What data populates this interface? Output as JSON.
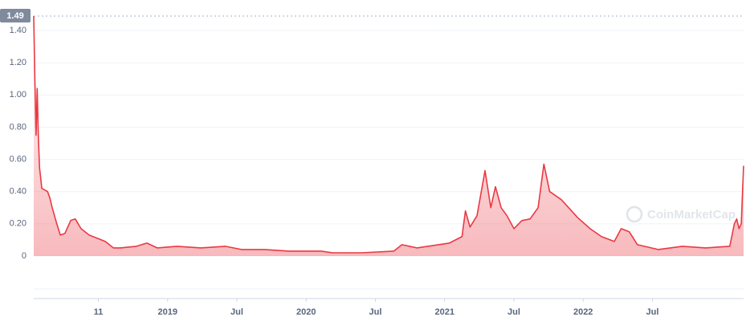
{
  "chart_data": {
    "type": "area",
    "high_label": "1.49",
    "watermark": "CoinMarketCap",
    "color": "#ea3943",
    "x": [
      0.4,
      0.5,
      0.6,
      0.7,
      0.8,
      0.9,
      1.1,
      1.6,
      1.8,
      2.0,
      2.4,
      2.7,
      3.1,
      3.6,
      4.0,
      4.5,
      5.2,
      5.9,
      6.6,
      7.3,
      7.9,
      9.3,
      10.2,
      11.1,
      12.8,
      14.9,
      17.0,
      18.4,
      20.4,
      22.5,
      25.3,
      26.3,
      28.8,
      31.6,
      32.3,
      33.6,
      36.4,
      37.5,
      37.8,
      38.2,
      38.8,
      39.5,
      40.0,
      40.4,
      40.9,
      41.4,
      42.0,
      42.7,
      43.4,
      44.1,
      44.6,
      45.1,
      46.1,
      47.0,
      47.5,
      48.6,
      49.6,
      50.7,
      51.3,
      52.0,
      52.7,
      54.5,
      56.6,
      58.6,
      60.7,
      61.1,
      61.3,
      61.5,
      61.7,
      61.9
    ],
    "values": [
      1.49,
      1.1,
      0.75,
      1.04,
      0.75,
      0.55,
      0.42,
      0.4,
      0.36,
      0.3,
      0.2,
      0.13,
      0.14,
      0.22,
      0.23,
      0.17,
      0.13,
      0.11,
      0.09,
      0.05,
      0.05,
      0.06,
      0.08,
      0.05,
      0.06,
      0.05,
      0.06,
      0.04,
      0.04,
      0.03,
      0.03,
      0.02,
      0.02,
      0.03,
      0.07,
      0.05,
      0.08,
      0.12,
      0.28,
      0.18,
      0.25,
      0.53,
      0.3,
      0.43,
      0.3,
      0.25,
      0.17,
      0.22,
      0.23,
      0.3,
      0.57,
      0.4,
      0.35,
      0.28,
      0.24,
      0.17,
      0.12,
      0.09,
      0.17,
      0.15,
      0.07,
      0.04,
      0.06,
      0.05,
      0.06,
      0.2,
      0.23,
      0.17,
      0.2,
      0.56
    ],
    "xlim": [
      0.4,
      61.9
    ],
    "xticks": [
      {
        "value": 6,
        "label": "11"
      },
      {
        "value": 12,
        "label": "2019"
      },
      {
        "value": 18,
        "label": "Jul"
      },
      {
        "value": 24,
        "label": "2020"
      },
      {
        "value": 30,
        "label": "Jul"
      },
      {
        "value": 36,
        "label": "2021"
      },
      {
        "value": 42,
        "label": "Jul"
      },
      {
        "value": 48,
        "label": "2022"
      },
      {
        "value": 54,
        "label": "Jul"
      }
    ],
    "ylim": [
      -0.05,
      1.49
    ],
    "yticks": [
      0,
      {
        "value": 0.2,
        "label": "0.20"
      },
      {
        "value": 0.4,
        "label": "0.40"
      },
      {
        "value": 0.6,
        "label": "0.60"
      },
      {
        "value": 0.8,
        "label": "0.80"
      },
      {
        "value": 1.0,
        "label": "1.00"
      },
      {
        "value": 1.2,
        "label": "1.20"
      },
      {
        "value": 1.4,
        "label": "1.40"
      }
    ],
    "grid": true
  }
}
